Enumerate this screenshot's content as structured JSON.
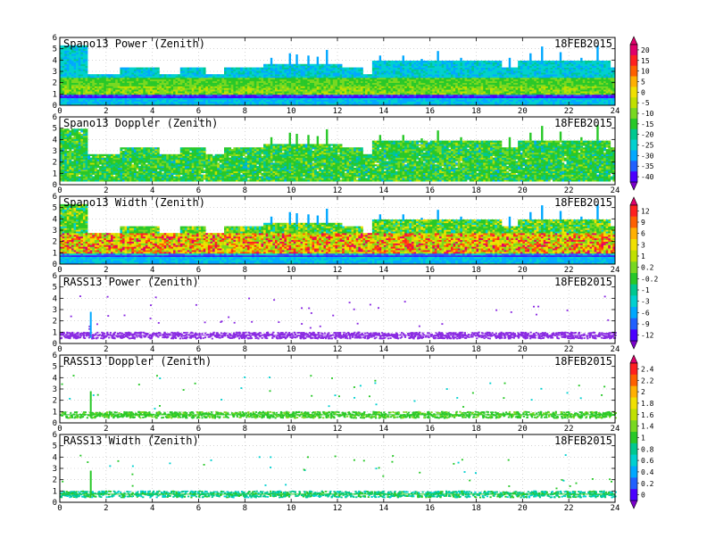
{
  "chart_data": {
    "type": "heatmap",
    "date": "18FEB2015",
    "x_ticks": [
      0,
      2,
      4,
      6,
      8,
      10,
      12,
      14,
      16,
      18,
      20,
      22,
      24
    ],
    "y_ticks": [
      0,
      1,
      2,
      3,
      4,
      5,
      6
    ],
    "xlim": [
      0,
      24
    ],
    "ylim": [
      0,
      6
    ],
    "panels": [
      {
        "title": "Spano13 Power (Zenith)",
        "date": "18FEB2015",
        "kind": "power",
        "colorbar": 0
      },
      {
        "title": "Spano13 Doppler (Zenith)",
        "date": "18FEB2015",
        "kind": "doppler",
        "colorbar": 0
      },
      {
        "title": "Spano13 Width (Zenith)",
        "date": "18FEB2015",
        "kind": "width",
        "colorbar": 1
      },
      {
        "title": "RASS13 Power (Zenith)",
        "date": "18FEB2015",
        "kind": "rass_power",
        "colorbar": 1
      },
      {
        "title": "RASS13 Doppler (Zenith)",
        "date": "18FEB2015",
        "kind": "rass_doppler",
        "colorbar": 2
      },
      {
        "title": "RASS13 Width (Zenith)",
        "date": "18FEB2015",
        "kind": "rass_width",
        "colorbar": 2
      }
    ],
    "top_boundary_km": [
      {
        "x": 0,
        "y": 5.2
      },
      {
        "x": 1.2,
        "y": 5.2
      },
      {
        "x": 1.2,
        "y": 2.7
      },
      {
        "x": 2.6,
        "y": 2.7
      },
      {
        "x": 2.6,
        "y": 3.3
      },
      {
        "x": 4.3,
        "y": 3.3
      },
      {
        "x": 4.3,
        "y": 2.7
      },
      {
        "x": 5.2,
        "y": 2.7
      },
      {
        "x": 5.2,
        "y": 3.3
      },
      {
        "x": 6.3,
        "y": 3.3
      },
      {
        "x": 6.3,
        "y": 2.7
      },
      {
        "x": 7.1,
        "y": 2.7
      },
      {
        "x": 7.1,
        "y": 3.3
      },
      {
        "x": 8.8,
        "y": 3.3
      },
      {
        "x": 8.8,
        "y": 3.5
      },
      {
        "x": 12.2,
        "y": 3.5
      },
      {
        "x": 12.2,
        "y": 3.3
      },
      {
        "x": 13.1,
        "y": 3.3
      },
      {
        "x": 13.1,
        "y": 2.7
      },
      {
        "x": 13.5,
        "y": 2.7
      },
      {
        "x": 13.5,
        "y": 3.9
      },
      {
        "x": 19.1,
        "y": 3.9
      },
      {
        "x": 19.1,
        "y": 3.2
      },
      {
        "x": 19.8,
        "y": 3.2
      },
      {
        "x": 19.8,
        "y": 3.9
      },
      {
        "x": 23.8,
        "y": 3.9
      },
      {
        "x": 23.8,
        "y": 3.2
      },
      {
        "x": 24,
        "y": 3.2
      }
    ],
    "colorbars": [
      {
        "ticks": [
          "20",
          "15",
          "10",
          "5",
          "0",
          "-5",
          "-10",
          "-15",
          "-20",
          "-25",
          "-30",
          "-35",
          "-40"
        ]
      },
      {
        "ticks": [
          "12",
          "9",
          "6",
          "3",
          "1",
          "0.2",
          "-0.2",
          "-1",
          "-3",
          "-6",
          "-9",
          "-12"
        ]
      },
      {
        "ticks": [
          "2.4",
          "2.2",
          "2",
          "1.8",
          "1.6",
          "1.4",
          "1",
          "0.8",
          "0.6",
          "0.4",
          "0.2",
          "0"
        ]
      }
    ],
    "palette": [
      "#7b00cc",
      "#4b00ff",
      "#2060ff",
      "#00a8ff",
      "#00d0d0",
      "#00c890",
      "#28c828",
      "#78d820",
      "#c0e000",
      "#f0e000",
      "#ffb000",
      "#ff6000",
      "#ff2020",
      "#e0006a"
    ],
    "colors": {
      "purple_rass": "#8a2be2",
      "gridline": "#bbbbbb"
    }
  }
}
